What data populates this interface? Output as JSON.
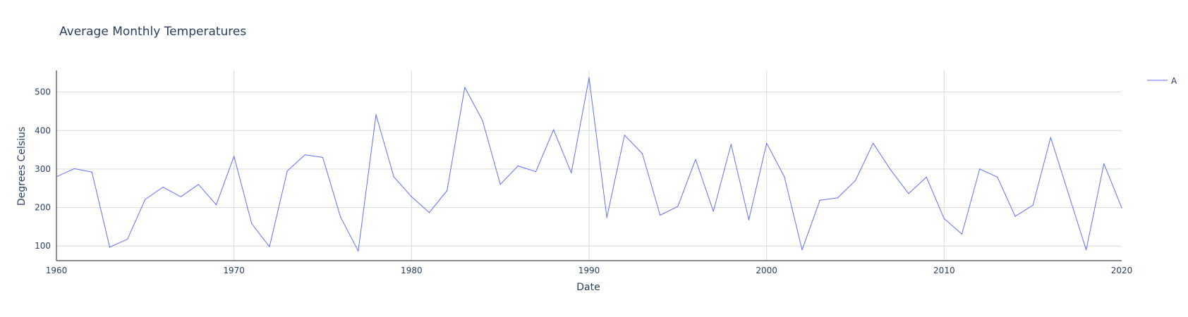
{
  "chart_data": {
    "type": "line",
    "title": "Average Monthly Temperatures",
    "xlabel": "Date",
    "ylabel": "Degrees Celsius",
    "xlim": [
      1960,
      2020
    ],
    "ylim": [
      62,
      556
    ],
    "x_ticks": [
      1960,
      1970,
      1980,
      1990,
      2000,
      2010,
      2020
    ],
    "y_ticks": [
      100,
      200,
      300,
      400,
      500
    ],
    "grid": true,
    "legend_position": "top-right",
    "series_color": "#636efa",
    "series": [
      {
        "name": "A",
        "x": [
          1960,
          1961,
          1962,
          1963,
          1964,
          1965,
          1966,
          1967,
          1968,
          1969,
          1970,
          1971,
          1972,
          1973,
          1974,
          1975,
          1976,
          1977,
          1978,
          1979,
          1980,
          1981,
          1982,
          1983,
          1984,
          1985,
          1986,
          1987,
          1988,
          1989,
          1990,
          1991,
          1992,
          1993,
          1994,
          1995,
          1996,
          1997,
          1998,
          1999,
          2000,
          2001,
          2002,
          2003,
          2004,
          2005,
          2006,
          2007,
          2008,
          2009,
          2010,
          2011,
          2012,
          2013,
          2014,
          2015,
          2016,
          2017,
          2018,
          2019,
          2020
        ],
        "values": [
          280,
          301,
          292,
          97,
          118,
          221,
          253,
          228,
          260,
          207,
          333,
          158,
          98,
          295,
          337,
          330,
          175,
          87,
          441,
          280,
          228,
          187,
          244,
          512,
          426,
          260,
          308,
          293,
          402,
          290,
          537,
          174,
          388,
          340,
          180,
          203,
          325,
          190,
          364,
          168,
          367,
          280,
          90,
          219,
          225,
          270,
          367,
          297,
          236,
          279,
          171,
          131,
          300,
          279,
          177,
          206,
          382,
          236,
          90,
          314,
          199
        ]
      }
    ]
  }
}
